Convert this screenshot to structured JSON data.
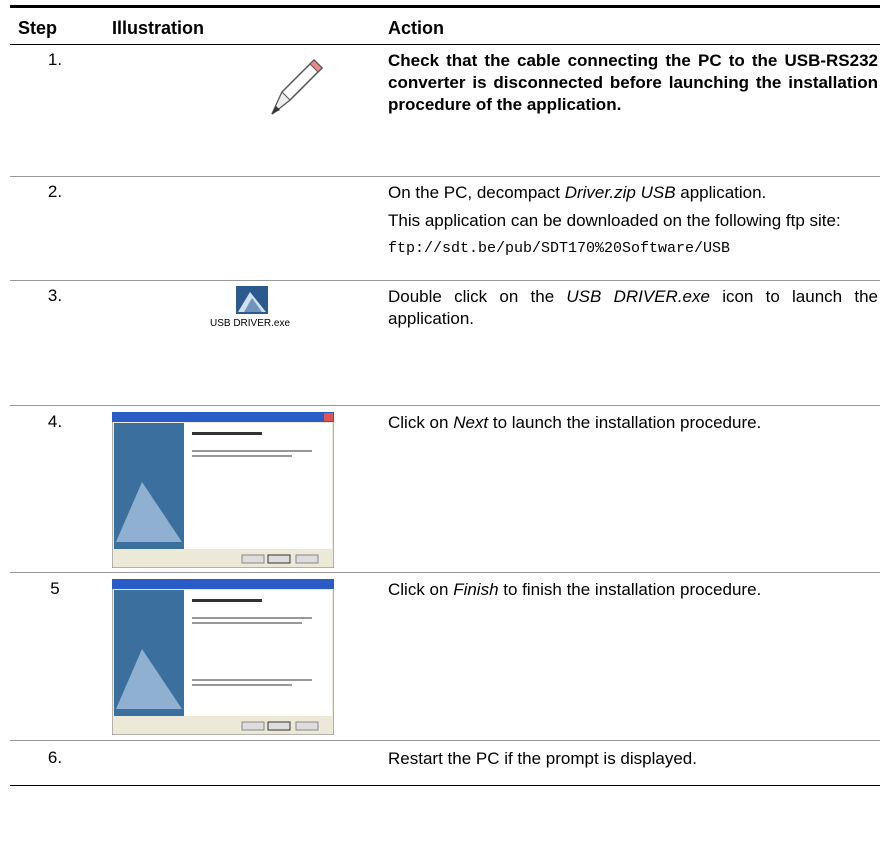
{
  "header": {
    "step": "Step",
    "illustration": "Illustration",
    "action": "Action"
  },
  "rows": [
    {
      "step": "1.",
      "action": [
        "Check that the cable connecting the PC to the USB-RS232 converter is disconnected before launching the installation procedure of the application."
      ]
    },
    {
      "step": "2.",
      "action_runs": [
        "On the PC, decompact ",
        "Driver.zip USB",
        " application."
      ],
      "action": [
        "This application can be downloaded on the following ftp site:",
        "ftp://sdt.be/pub/SDT170%20Software/USB"
      ]
    },
    {
      "step": "3.",
      "icon_label": "USB DRIVER.exe",
      "action_runs": [
        "Double click on the ",
        "USB DRIVER.exe",
        " icon to launch the application."
      ]
    },
    {
      "step": "4.",
      "action_runs": [
        "Click on ",
        "Next",
        " to launch the installation procedure."
      ]
    },
    {
      "step": "5",
      "action_runs": [
        "Click on ",
        "Finish",
        " to finish the installation procedure."
      ]
    },
    {
      "step": "6.",
      "action": [
        "Restart the PC if the prompt is displayed."
      ]
    }
  ]
}
